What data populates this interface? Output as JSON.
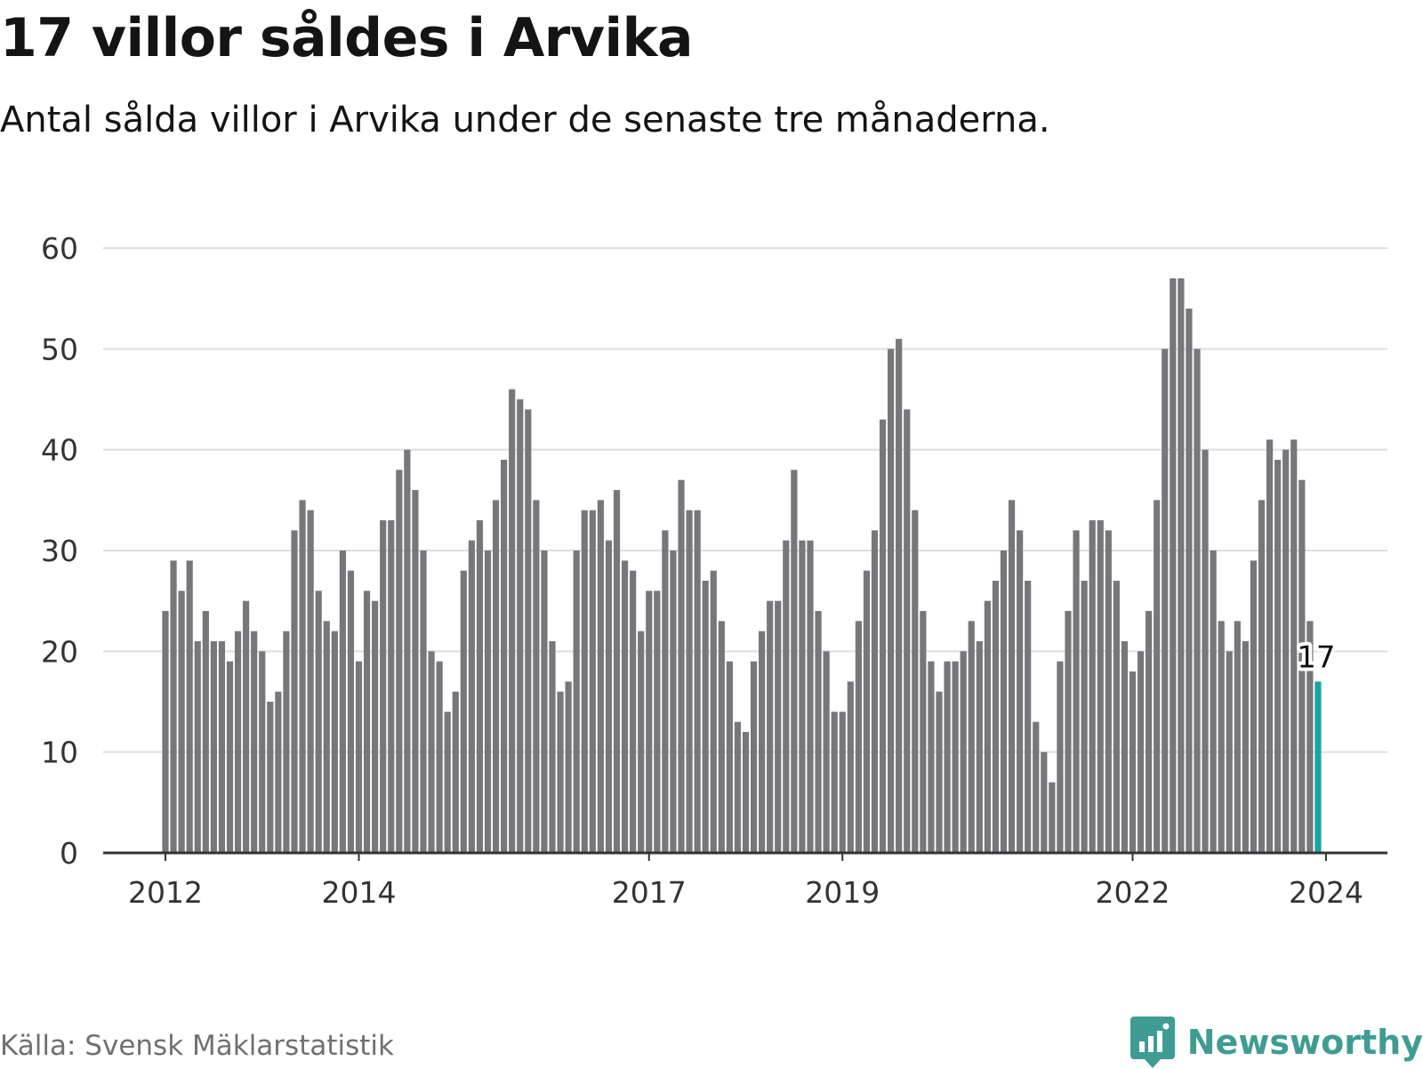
{
  "header": {
    "title": "17 villor såldes i Arvika",
    "subtitle": "Antal sålda villor i Arvika under de senaste tre månaderna."
  },
  "footer": {
    "source": "Källa: Svensk Mäklarstatistik",
    "brand": "Newsworthy",
    "brand_icon": "bar-chart-speech-icon"
  },
  "colors": {
    "bar": "#77767b",
    "highlight": "#1ba59f",
    "grid": "#dddddd",
    "axis": "#333333",
    "brand": "#3f9c93"
  },
  "chart_data": {
    "type": "bar",
    "title": "17 villor såldes i Arvika",
    "xlabel": "",
    "ylabel": "",
    "ylim": [
      0,
      60
    ],
    "yticks": [
      0,
      10,
      20,
      30,
      40,
      50,
      60
    ],
    "grid": true,
    "start": "2012-01",
    "frequency": "monthly",
    "xtick_labels": [
      {
        "label": "2012",
        "index": 0
      },
      {
        "label": "2014",
        "index": 24
      },
      {
        "label": "2017",
        "index": 60
      },
      {
        "label": "2019",
        "index": 84
      },
      {
        "label": "2022",
        "index": 120
      },
      {
        "label": "2024",
        "index": 144
      }
    ],
    "values": [
      24,
      29,
      26,
      29,
      21,
      24,
      21,
      21,
      19,
      22,
      25,
      22,
      20,
      15,
      16,
      22,
      32,
      35,
      34,
      26,
      23,
      22,
      30,
      28,
      19,
      26,
      25,
      33,
      33,
      38,
      40,
      36,
      30,
      20,
      19,
      14,
      16,
      28,
      31,
      33,
      30,
      35,
      39,
      46,
      45,
      44,
      35,
      30,
      21,
      16,
      17,
      30,
      34,
      34,
      35,
      31,
      36,
      29,
      28,
      22,
      26,
      26,
      32,
      30,
      37,
      34,
      34,
      27,
      28,
      23,
      19,
      13,
      12,
      19,
      22,
      25,
      25,
      31,
      38,
      31,
      31,
      24,
      20,
      14,
      14,
      17,
      23,
      28,
      32,
      43,
      50,
      51,
      44,
      34,
      24,
      19,
      16,
      19,
      19,
      20,
      23,
      21,
      25,
      27,
      30,
      35,
      32,
      27,
      13,
      10,
      7,
      19,
      24,
      32,
      27,
      33,
      33,
      32,
      27,
      21,
      18,
      20,
      24,
      35,
      50,
      57,
      57,
      54,
      50,
      40,
      30,
      23,
      20,
      23,
      21,
      29,
      35,
      41,
      39,
      40,
      41,
      37,
      23,
      17
    ],
    "highlight_index": 143,
    "highlight_label": "17"
  }
}
